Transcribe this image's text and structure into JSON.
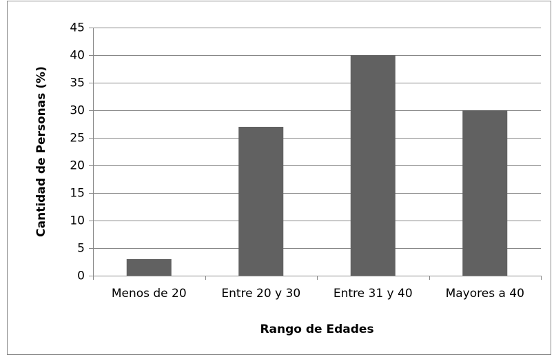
{
  "chart_data": {
    "type": "bar",
    "x_label": "Rango de Edades",
    "y_label": "Cantidad de Personas (%)",
    "categories": [
      "Menos de 20",
      "Entre 20 y 30",
      "Entre 31 y 40",
      "Mayores a 40"
    ],
    "values": [
      3,
      27,
      40,
      30
    ],
    "color": "#616161",
    "ylim": [
      0,
      45
    ],
    "yticks": [
      0,
      5,
      10,
      15,
      20,
      25,
      30,
      35,
      40,
      45
    ],
    "grid": true
  }
}
